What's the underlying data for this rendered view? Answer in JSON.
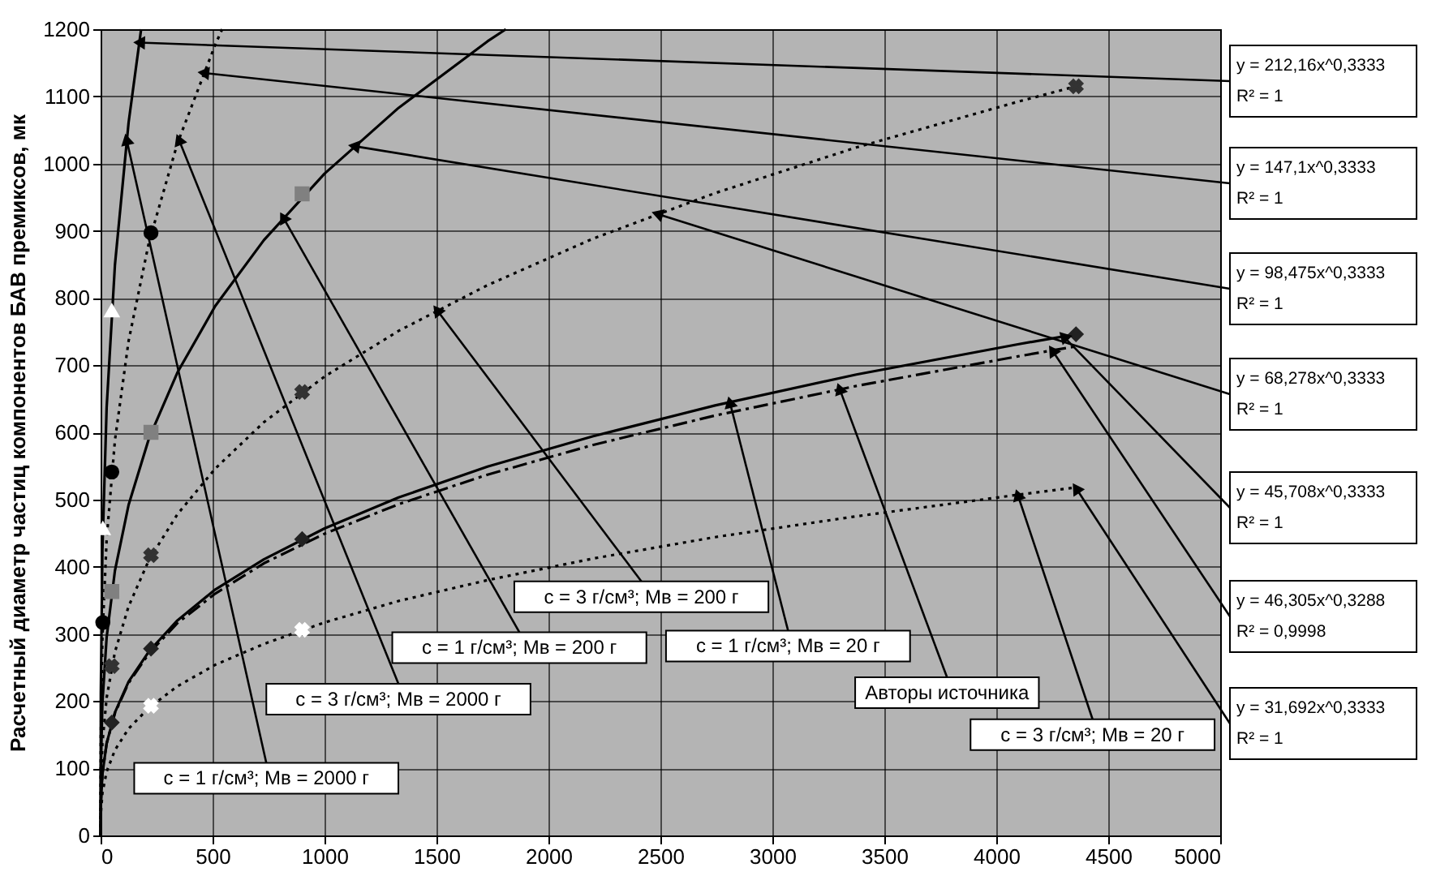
{
  "chart_data": {
    "type": "line",
    "ylabel": "Расчетный диаметр частиц компонентов БАВ премиксов, мк",
    "xlim": [
      0,
      5000
    ],
    "xticks": [
      0,
      500,
      1000,
      1500,
      2000,
      2500,
      3000,
      3500,
      4000,
      4500,
      5000
    ],
    "ylim": [
      0,
      1200
    ],
    "yticks": [
      0,
      100,
      200,
      300,
      400,
      500,
      600,
      700,
      800,
      900,
      1000,
      1100,
      1200
    ],
    "grid": true,
    "series": [
      {
        "line_style": "solid",
        "color": "#000000",
        "x": [
          0,
          1,
          8,
          27,
          64,
          125,
          181
        ],
        "values": [
          0,
          212,
          424,
          637,
          849,
          1061,
          1200
        ]
      },
      {
        "line_style": "dotted",
        "color": "#000000",
        "x": [
          0,
          1,
          8,
          27,
          64,
          125,
          216,
          343,
          512,
          543
        ],
        "values": [
          0,
          147,
          294,
          441,
          588,
          736,
          883,
          1030,
          1177,
          1200
        ]
      },
      {
        "line_style": "solid",
        "color": "#000000",
        "x": [
          0,
          1,
          8,
          27,
          64,
          125,
          216,
          343,
          512,
          729,
          1000,
          1331,
          1728,
          1810
        ],
        "values": [
          0,
          98,
          197,
          295,
          394,
          492,
          591,
          689,
          788,
          886,
          985,
          1083,
          1182,
          1200
        ]
      },
      {
        "line_style": "dotted",
        "color": "#000000",
        "x": [
          0,
          1,
          8,
          27,
          64,
          125,
          216,
          343,
          512,
          729,
          1000,
          1331,
          1728,
          2197,
          2744,
          3375,
          4096,
          4356
        ],
        "values": [
          0,
          68,
          137,
          205,
          273,
          341,
          410,
          478,
          546,
          615,
          683,
          751,
          819,
          888,
          956,
          1024,
          1092,
          1115
        ]
      },
      {
        "line_style": "solid",
        "color": "#000000",
        "x": [
          0,
          1,
          8,
          27,
          64,
          125,
          216,
          343,
          512,
          729,
          1000,
          1331,
          1728,
          2197,
          2744,
          3375,
          4096,
          4356
        ],
        "values": [
          0,
          46,
          91,
          137,
          183,
          229,
          274,
          320,
          366,
          411,
          457,
          503,
          549,
          594,
          640,
          686,
          731,
          746
        ]
      },
      {
        "line_style": "dashed",
        "color": "#000000",
        "x": [
          0,
          1,
          8,
          27,
          64,
          125,
          216,
          343,
          512,
          729,
          1000,
          1331,
          1728,
          2197,
          2744,
          3375,
          4096,
          4356
        ],
        "values": [
          0,
          46,
          92,
          137,
          182,
          227,
          271,
          316,
          360,
          405,
          449,
          493,
          537,
          581,
          625,
          669,
          713,
          728
        ]
      },
      {
        "line_style": "dotted",
        "color": "#000000",
        "x": [
          0,
          1,
          8,
          27,
          64,
          125,
          216,
          343,
          512,
          729,
          1000,
          1331,
          1728,
          2197,
          2744,
          3375,
          4096,
          4356
        ],
        "values": [
          0,
          32,
          63,
          95,
          127,
          159,
          190,
          222,
          254,
          285,
          317,
          349,
          380,
          412,
          444,
          475,
          507,
          518
        ]
      },
      {
        "type": "scatter",
        "marker": "triangle",
        "color": "#ffffff",
        "x": [
          10,
          50
        ],
        "values": [
          457,
          781
        ]
      },
      {
        "type": "scatter",
        "marker": "circle",
        "color": "#000000",
        "x": [
          10,
          50,
          225
        ],
        "values": [
          317,
          541,
          897
        ]
      },
      {
        "type": "scatter",
        "marker": "square",
        "color": "#808080",
        "x": [
          50,
          225,
          900
        ],
        "values": [
          363,
          600,
          955
        ]
      },
      {
        "type": "scatter",
        "marker": "cross",
        "color": "#333333",
        "x": [
          50,
          225,
          900,
          4356
        ],
        "values": [
          252,
          417,
          660,
          1115
        ]
      },
      {
        "type": "scatter",
        "marker": "diamond",
        "color": "#222222",
        "x": [
          50,
          225,
          900,
          4356
        ],
        "values": [
          168,
          278,
          441,
          746
        ]
      },
      {
        "type": "scatter",
        "marker": "cross",
        "color": "#ffffff",
        "x": [
          225,
          900
        ],
        "values": [
          193,
          306
        ]
      }
    ],
    "annotations": [
      {
        "text": "y = 212,16x^0,3333\nR² = 1",
        "x": 172,
        "y": 1180
      },
      {
        "text": "y = 147,1x^0,3333\nR² = 1",
        "x": 459,
        "y": 1135
      },
      {
        "text": "y = 98,475x^0,3333\nR² = 1",
        "x": 1131,
        "y": 1026
      },
      {
        "text": "y = 68,278x^0,3333\nR² = 1",
        "x": 2486,
        "y": 925
      },
      {
        "text": "y = 45,708x^0,3333\nR² = 1",
        "x": 4300,
        "y": 743
      },
      {
        "text": "y = 46,305x^0,3288\nR² = 0,9998",
        "x": 4250,
        "y": 722
      },
      {
        "text": "y = 31,692x^0,3333\nR² = 1",
        "x": 4356,
        "y": 517
      },
      {
        "text": "c = 1 г/см³; Мв = 2000 г",
        "x": 116,
        "y": 1036
      },
      {
        "text": "c = 3 г/см³; Мв = 2000 г",
        "x": 349,
        "y": 1036
      },
      {
        "text": "c = 3 г/см³; Мв = 200 г",
        "x": 1502,
        "y": 782
      },
      {
        "text": "c = 1 г/см³; Мв = 200 г",
        "x": 815,
        "y": 920
      },
      {
        "text": "c = 1 г/см³; Мв = 20 г",
        "x": 2810,
        "y": 645
      },
      {
        "text": "Авторы источника",
        "x": 3300,
        "y": 665
      },
      {
        "text": "c = 3 г/см³; Мв = 20 г",
        "x": 4096,
        "y": 507
      }
    ]
  }
}
